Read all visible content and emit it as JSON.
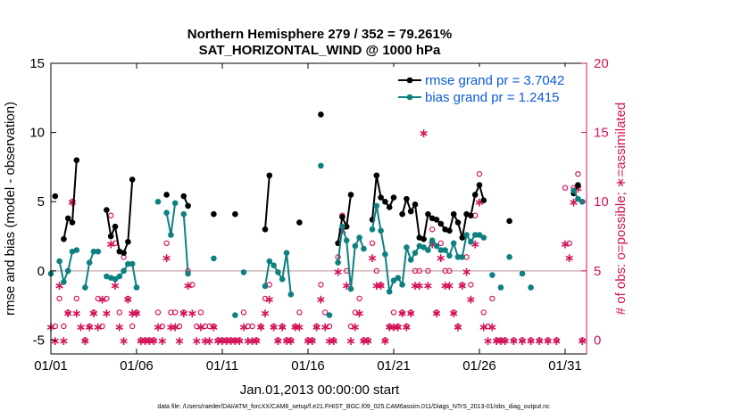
{
  "chart_data": {
    "type": "line",
    "title": "Northern Hemisphere 279 / 352 = 79.261%",
    "subtitle": "SAT_HORIZONTAL_WIND @ 1000 hPa",
    "xlabel": "Jan.01,2013 00:00:00 start",
    "ylabel_left": "rmse and bias (model - observation)",
    "ylabel_right": "# of obs: o=possible; ∗=assimilated",
    "footnote": "data file: /Users/raeder/DAI/ATM_forcXX/CAM6_setup/f.e21.FHIST_BGC.f09_025.CAM6assim.011/Diags_NTrS_2013-01/obs_diag_output.nc",
    "x_tick_labels": [
      "01/01",
      "01/06",
      "01/11",
      "01/16",
      "01/21",
      "01/26",
      "01/31"
    ],
    "x_tick_days": [
      1,
      6,
      11,
      16,
      21,
      26,
      31
    ],
    "xlim": [
      1,
      32.25
    ],
    "ylim_left": [
      -6,
      15
    ],
    "y_ticks_left": [
      -5,
      0,
      5,
      10,
      15
    ],
    "ylim_right": [
      -1,
      20
    ],
    "y_ticks_right": [
      0,
      5,
      10,
      15,
      20
    ],
    "legend": [
      "rmse grand pr = 3.7042",
      "bias grand pr = 1.2415"
    ],
    "colors": {
      "rmse": "#000000",
      "bias": "#0e8080",
      "obs": "#d4145a",
      "axis_right": "#d4145a",
      "zero_line": "#c8a8a8",
      "legend_text": "#0a5bd6"
    },
    "series": [
      {
        "name": "rmse",
        "values": [
          [
            1.25,
            5.4
          ],
          [
            1.75,
            2.3
          ],
          [
            2.0,
            3.8
          ],
          [
            2.25,
            3.5
          ],
          [
            2.5,
            8.0
          ],
          [
            4.25,
            4.4
          ],
          [
            4.5,
            2.5
          ],
          [
            4.75,
            3.2
          ],
          [
            5.0,
            1.4
          ],
          [
            5.25,
            1.3
          ],
          [
            5.5,
            2.1
          ],
          [
            5.75,
            6.6
          ],
          [
            7.75,
            5.5
          ],
          [
            8.75,
            5.4
          ],
          [
            9.0,
            4.7
          ],
          [
            10.5,
            4.1
          ],
          [
            11.75,
            4.1
          ],
          [
            13.5,
            3.0
          ],
          [
            13.75,
            6.9
          ],
          [
            15.5,
            3.5
          ],
          [
            16.75,
            11.3
          ],
          [
            17.75,
            2.0
          ],
          [
            18.0,
            3.9
          ],
          [
            18.25,
            3.2
          ],
          [
            18.5,
            5.5
          ],
          [
            19.75,
            3.7
          ],
          [
            20.0,
            6.9
          ],
          [
            20.25,
            5.3
          ],
          [
            20.5,
            5.0
          ],
          [
            20.75,
            4.6
          ],
          [
            21.0,
            5.3
          ],
          [
            21.5,
            4.1
          ],
          [
            21.75,
            5.2
          ],
          [
            22.0,
            4.3
          ],
          [
            22.25,
            4.8
          ],
          [
            22.5,
            2.4
          ],
          [
            22.75,
            2.3
          ],
          [
            23.0,
            4.1
          ],
          [
            23.25,
            3.8
          ],
          [
            23.5,
            3.7
          ],
          [
            23.75,
            3.4
          ],
          [
            24.0,
            3.0
          ],
          [
            24.25,
            2.9
          ],
          [
            24.5,
            4.1
          ],
          [
            24.75,
            3.5
          ],
          [
            25.0,
            2.4
          ],
          [
            25.25,
            4.1
          ],
          [
            25.5,
            4.0
          ],
          [
            25.75,
            5.5
          ],
          [
            26.0,
            6.2
          ],
          [
            26.25,
            5.1
          ],
          [
            27.75,
            3.6
          ],
          [
            31.5,
            5.6
          ],
          [
            31.75,
            6.2
          ]
        ]
      },
      {
        "name": "bias",
        "values": [
          [
            1.0,
            -0.2
          ],
          [
            1.5,
            0.7
          ],
          [
            1.75,
            -0.8
          ],
          [
            2.0,
            0.0
          ],
          [
            2.25,
            1.4
          ],
          [
            2.5,
            1.5
          ],
          [
            3.0,
            -1.2
          ],
          [
            3.25,
            0.6
          ],
          [
            3.5,
            1.4
          ],
          [
            3.75,
            1.4
          ],
          [
            4.25,
            -0.4
          ],
          [
            4.5,
            -0.5
          ],
          [
            4.75,
            -0.6
          ],
          [
            5.0,
            -0.4
          ],
          [
            5.25,
            0.0
          ],
          [
            5.5,
            0.5
          ],
          [
            5.75,
            0.5
          ],
          [
            6.0,
            -1.2
          ],
          [
            7.25,
            5.0
          ],
          [
            7.75,
            4.2
          ],
          [
            8.0,
            2.6
          ],
          [
            8.25,
            4.9
          ],
          [
            8.75,
            4.1
          ],
          [
            9.0,
            -0.2
          ],
          [
            10.5,
            0.9
          ],
          [
            11.75,
            -3.2
          ],
          [
            12.25,
            -0.1
          ],
          [
            13.5,
            -1.1
          ],
          [
            13.75,
            0.7
          ],
          [
            14.0,
            0.4
          ],
          [
            14.25,
            -0.1
          ],
          [
            14.5,
            -0.6
          ],
          [
            14.75,
            1.3
          ],
          [
            15.0,
            -1.7
          ],
          [
            16.75,
            7.6
          ],
          [
            17.25,
            -3.2
          ],
          [
            17.75,
            0.6
          ],
          [
            18.0,
            3.2
          ],
          [
            18.25,
            2.2
          ],
          [
            18.5,
            -1.3
          ],
          [
            18.75,
            1.8
          ],
          [
            19.0,
            2.4
          ],
          [
            19.25,
            1.6
          ],
          [
            19.75,
            3.0
          ],
          [
            20.0,
            4.7
          ],
          [
            20.25,
            2.9
          ],
          [
            20.5,
            1.2
          ],
          [
            20.75,
            -1.5
          ],
          [
            21.0,
            -0.7
          ],
          [
            21.25,
            -0.5
          ],
          [
            21.5,
            -1.0
          ],
          [
            21.75,
            1.7
          ],
          [
            22.0,
            0.8
          ],
          [
            22.25,
            1.3
          ],
          [
            22.5,
            1.8
          ],
          [
            22.75,
            1.7
          ],
          [
            23.0,
            1.5
          ],
          [
            23.25,
            2.2
          ],
          [
            23.5,
            1.8
          ],
          [
            23.75,
            1.5
          ],
          [
            24.0,
            1.5
          ],
          [
            24.25,
            1.1
          ],
          [
            24.5,
            2.0
          ],
          [
            24.75,
            1.0
          ],
          [
            25.0,
            1.0
          ],
          [
            25.25,
            2.6
          ],
          [
            25.5,
            2.1
          ],
          [
            25.75,
            2.6
          ],
          [
            26.0,
            2.6
          ],
          [
            26.25,
            2.4
          ],
          [
            26.75,
            -0.3
          ],
          [
            27.25,
            -1.2
          ],
          [
            27.75,
            1.0
          ],
          [
            28.5,
            -0.2
          ],
          [
            29.0,
            -1.2
          ],
          [
            31.5,
            5.8
          ],
          [
            31.75,
            5.2
          ],
          [
            32.0,
            5.0
          ]
        ]
      }
    ],
    "obs_possible": [
      [
        1.25,
        1
      ],
      [
        1.5,
        3
      ],
      [
        1.75,
        1
      ],
      [
        2.0,
        2
      ],
      [
        2.25,
        10
      ],
      [
        2.5,
        3
      ],
      [
        3.0,
        0
      ],
      [
        3.25,
        1
      ],
      [
        3.5,
        2
      ],
      [
        3.75,
        3
      ],
      [
        4.0,
        1
      ],
      [
        4.25,
        3
      ],
      [
        4.5,
        9
      ],
      [
        4.75,
        7
      ],
      [
        5.0,
        2
      ],
      [
        5.25,
        6
      ],
      [
        5.5,
        3
      ],
      [
        5.75,
        1
      ],
      [
        6.0,
        2
      ],
      [
        6.25,
        0
      ],
      [
        6.5,
        0
      ],
      [
        6.75,
        0
      ],
      [
        7.0,
        0
      ],
      [
        7.25,
        2
      ],
      [
        7.5,
        1
      ],
      [
        7.75,
        7
      ],
      [
        8.0,
        2
      ],
      [
        8.25,
        2
      ],
      [
        8.5,
        1
      ],
      [
        8.75,
        2
      ],
      [
        9.0,
        5
      ],
      [
        9.25,
        4
      ],
      [
        9.5,
        1
      ],
      [
        9.75,
        2
      ],
      [
        10.0,
        1
      ],
      [
        10.25,
        1
      ],
      [
        10.5,
        1
      ],
      [
        10.75,
        0
      ],
      [
        11.0,
        0
      ],
      [
        11.25,
        0
      ],
      [
        11.5,
        0
      ],
      [
        11.75,
        0
      ],
      [
        12.0,
        0
      ],
      [
        12.25,
        2
      ],
      [
        12.5,
        1
      ],
      [
        12.75,
        1
      ],
      [
        13.0,
        0
      ],
      [
        13.25,
        1
      ],
      [
        13.5,
        3
      ],
      [
        13.75,
        4
      ],
      [
        14.0,
        1
      ],
      [
        14.25,
        0
      ],
      [
        14.5,
        1
      ],
      [
        14.75,
        0
      ],
      [
        15.0,
        0
      ],
      [
        15.25,
        1
      ],
      [
        15.5,
        2
      ],
      [
        16.0,
        0
      ],
      [
        16.25,
        0
      ],
      [
        16.5,
        1
      ],
      [
        16.75,
        4
      ],
      [
        17.0,
        2
      ],
      [
        17.25,
        1
      ],
      [
        17.5,
        0
      ],
      [
        17.75,
        6
      ],
      [
        18.0,
        9
      ],
      [
        18.25,
        5
      ],
      [
        18.5,
        1
      ],
      [
        18.75,
        2
      ],
      [
        19.0,
        3
      ],
      [
        19.25,
        0
      ],
      [
        19.5,
        0
      ],
      [
        19.75,
        7
      ],
      [
        20.0,
        5
      ],
      [
        20.25,
        4
      ],
      [
        20.5,
        0
      ],
      [
        20.75,
        1
      ],
      [
        21.0,
        2
      ],
      [
        21.25,
        1
      ],
      [
        21.5,
        2
      ],
      [
        21.75,
        1
      ],
      [
        22.0,
        2
      ],
      [
        22.25,
        5
      ],
      [
        22.5,
        5
      ],
      [
        22.75,
        17
      ],
      [
        23.0,
        5
      ],
      [
        23.25,
        8
      ],
      [
        23.5,
        2
      ],
      [
        23.75,
        7
      ],
      [
        24.0,
        5
      ],
      [
        24.25,
        5
      ],
      [
        24.5,
        2
      ],
      [
        24.75,
        1
      ],
      [
        25.0,
        4
      ],
      [
        25.25,
        6
      ],
      [
        25.5,
        4
      ],
      [
        25.75,
        9
      ],
      [
        26.0,
        12
      ],
      [
        26.25,
        2
      ],
      [
        26.5,
        1
      ],
      [
        26.75,
        3
      ],
      [
        27.0,
        0
      ],
      [
        27.25,
        0
      ],
      [
        27.5,
        0
      ],
      [
        28.0,
        0
      ],
      [
        28.5,
        0
      ],
      [
        29.0,
        0
      ],
      [
        29.5,
        0
      ],
      [
        30.0,
        0
      ],
      [
        30.5,
        0
      ],
      [
        31.0,
        11
      ],
      [
        31.25,
        7
      ],
      [
        31.5,
        11
      ],
      [
        31.75,
        12
      ],
      [
        32.0,
        0
      ]
    ],
    "obs_assimilated": [
      [
        1.0,
        1
      ],
      [
        1.25,
        0
      ],
      [
        1.5,
        4
      ],
      [
        1.75,
        0
      ],
      [
        2.0,
        2
      ],
      [
        2.25,
        10
      ],
      [
        2.5,
        2
      ],
      [
        2.75,
        1
      ],
      [
        3.0,
        0
      ],
      [
        3.25,
        1
      ],
      [
        3.5,
        2
      ],
      [
        3.75,
        1
      ],
      [
        4.0,
        3
      ],
      [
        4.25,
        2
      ],
      [
        4.5,
        7
      ],
      [
        4.75,
        4
      ],
      [
        5.0,
        1
      ],
      [
        5.25,
        0
      ],
      [
        5.5,
        3
      ],
      [
        5.75,
        2
      ],
      [
        6.0,
        2
      ],
      [
        6.25,
        0
      ],
      [
        6.5,
        0
      ],
      [
        6.75,
        0
      ],
      [
        7.0,
        0
      ],
      [
        7.25,
        1
      ],
      [
        7.5,
        0
      ],
      [
        7.75,
        6
      ],
      [
        8.0,
        1
      ],
      [
        8.25,
        1
      ],
      [
        8.5,
        0
      ],
      [
        8.75,
        2
      ],
      [
        9.0,
        4
      ],
      [
        9.25,
        2
      ],
      [
        9.5,
        0
      ],
      [
        9.75,
        1
      ],
      [
        10.0,
        0
      ],
      [
        10.25,
        0
      ],
      [
        10.5,
        1
      ],
      [
        10.75,
        0
      ],
      [
        11.0,
        0
      ],
      [
        11.25,
        0
      ],
      [
        11.5,
        0
      ],
      [
        11.75,
        0
      ],
      [
        12.0,
        0
      ],
      [
        12.25,
        1
      ],
      [
        12.5,
        0
      ],
      [
        12.75,
        0
      ],
      [
        13.0,
        0
      ],
      [
        13.25,
        1
      ],
      [
        13.5,
        2
      ],
      [
        13.75,
        3
      ],
      [
        14.0,
        1
      ],
      [
        14.25,
        0
      ],
      [
        14.5,
        1
      ],
      [
        14.75,
        0
      ],
      [
        15.0,
        0
      ],
      [
        15.25,
        1
      ],
      [
        15.5,
        1
      ],
      [
        16.0,
        0
      ],
      [
        16.25,
        0
      ],
      [
        16.5,
        1
      ],
      [
        16.75,
        3
      ],
      [
        17.0,
        1
      ],
      [
        17.25,
        0
      ],
      [
        17.5,
        0
      ],
      [
        17.75,
        5
      ],
      [
        18.0,
        8
      ],
      [
        18.25,
        4
      ],
      [
        18.5,
        0
      ],
      [
        18.75,
        1
      ],
      [
        19.0,
        2
      ],
      [
        19.25,
        0
      ],
      [
        19.5,
        0
      ],
      [
        19.75,
        6
      ],
      [
        20.0,
        4
      ],
      [
        20.25,
        4
      ],
      [
        20.5,
        0
      ],
      [
        20.75,
        1
      ],
      [
        21.0,
        1
      ],
      [
        21.25,
        1
      ],
      [
        21.5,
        2
      ],
      [
        21.75,
        1
      ],
      [
        22.0,
        2
      ],
      [
        22.25,
        4
      ],
      [
        22.5,
        4
      ],
      [
        22.75,
        15
      ],
      [
        23.0,
        4
      ],
      [
        23.25,
        7
      ],
      [
        23.5,
        2
      ],
      [
        23.75,
        6
      ],
      [
        24.0,
        4
      ],
      [
        24.25,
        4
      ],
      [
        24.5,
        2
      ],
      [
        24.75,
        1
      ],
      [
        25.0,
        4
      ],
      [
        25.25,
        5
      ],
      [
        25.5,
        3
      ],
      [
        25.75,
        7
      ],
      [
        26.0,
        10
      ],
      [
        26.25,
        1
      ],
      [
        26.5,
        0
      ],
      [
        26.75,
        1
      ],
      [
        27.0,
        0
      ],
      [
        27.25,
        0
      ],
      [
        27.5,
        0
      ],
      [
        28.0,
        0
      ],
      [
        28.5,
        0
      ],
      [
        29.0,
        0
      ],
      [
        29.5,
        0
      ],
      [
        30.0,
        0
      ],
      [
        30.5,
        0
      ],
      [
        31.0,
        7
      ],
      [
        31.25,
        6
      ],
      [
        31.5,
        10
      ],
      [
        31.75,
        11
      ],
      [
        32.0,
        0
      ]
    ]
  }
}
